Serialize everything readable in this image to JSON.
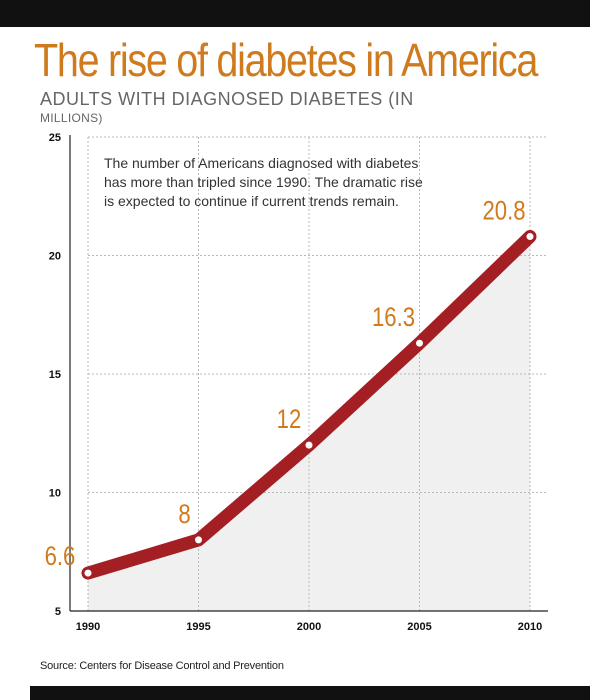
{
  "colors": {
    "title": "#d07a1e",
    "line": "#a31f23",
    "data_label": "#d07a1e",
    "area_fill": "#f0f0f0",
    "grid": "#b8b8b8",
    "axis_text": "#111111",
    "bars": "#111111"
  },
  "chart_data": {
    "type": "line",
    "title": "The rise of diabetes in America",
    "subtitle": "ADULTS WITH DIAGNOSED DIABETES (IN",
    "subtitle_continued": "MILLIONS)",
    "xlabel": "",
    "ylabel": "",
    "x": [
      "1990",
      "1995",
      "2000",
      "2005",
      "2010"
    ],
    "series": [
      {
        "values": [
          6.6,
          8,
          12,
          16.3,
          20.8
        ]
      }
    ],
    "data_labels": [
      "6.6",
      "8",
      "12",
      "16.3",
      "20.8"
    ],
    "ylim": [
      5,
      25
    ],
    "yticks": [
      "5",
      "10",
      "15",
      "20",
      "25"
    ],
    "grid": true,
    "area_fill": true,
    "annotation": "The number of Americans diagnosed with diabetes has more than tripled since 1990. The dramatic rise is expected to continue if current trends remain."
  },
  "source": "Source: Centers for Disease Control and Prevention"
}
